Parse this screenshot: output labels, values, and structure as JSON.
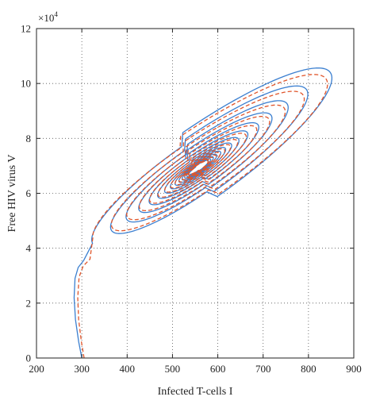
{
  "chart_data": {
    "type": "line",
    "title": "",
    "xlabel": "Infected T-cells I",
    "ylabel": "Free HIV virus V",
    "y_multiplier_label": "×10",
    "y_multiplier_exponent": "4",
    "xlim": [
      200,
      900
    ],
    "ylim": [
      0,
      12
    ],
    "x_ticks": [
      200,
      300,
      400,
      500,
      600,
      700,
      800,
      900
    ],
    "y_ticks": [
      0,
      2,
      4,
      6,
      8,
      10,
      12
    ],
    "x_tick_labels": [
      "200",
      "300",
      "400",
      "500",
      "600",
      "700",
      "800",
      "900"
    ],
    "y_tick_labels": [
      "0",
      "2",
      "4",
      "6",
      "8",
      "10",
      "12"
    ],
    "grid": true,
    "legend": "none",
    "equilibrium": {
      "x": 555,
      "y": 6.9
    },
    "series": [
      {
        "color": "#3b7fd0",
        "dash": "solid",
        "initial": {
          "x": 300,
          "y": 0
        },
        "approach": [
          {
            "x": 300,
            "y": 0
          },
          {
            "x": 293,
            "y": 0.6
          },
          {
            "x": 286,
            "y": 1.4
          },
          {
            "x": 283,
            "y": 2.2
          },
          {
            "x": 285,
            "y": 2.9
          },
          {
            "x": 292,
            "y": 3.3
          },
          {
            "x": 304,
            "y": 3.55
          }
        ],
        "spiral": {
          "first_peak": {
            "x": 880,
            "y": 10.65
          },
          "first_trough": {
            "x": 328,
            "y": 4.15
          },
          "decay": 0.82,
          "turns": 14,
          "phase_offset": 0
        }
      },
      {
        "color": "#e0552a",
        "dash": "dashed",
        "initial": {
          "x": 305,
          "y": 0
        },
        "approach": [
          {
            "x": 305,
            "y": 0
          },
          {
            "x": 299,
            "y": 0.6
          },
          {
            "x": 293,
            "y": 1.4
          },
          {
            "x": 291,
            "y": 2.2
          },
          {
            "x": 294,
            "y": 2.95
          },
          {
            "x": 303,
            "y": 3.35
          },
          {
            "x": 318,
            "y": 3.6
          }
        ],
        "spiral": {
          "first_peak": {
            "x": 870,
            "y": 10.35
          },
          "first_trough": {
            "x": 332,
            "y": 4.25
          },
          "decay": 0.82,
          "turns": 14,
          "phase_offset": 0.08
        }
      }
    ]
  }
}
